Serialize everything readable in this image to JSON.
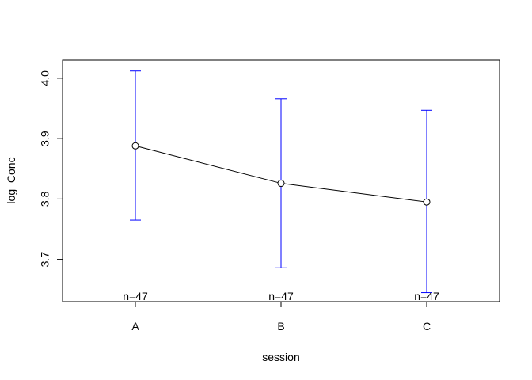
{
  "chart_data": {
    "type": "line",
    "title": "",
    "xlabel": "session",
    "ylabel": "log_Conc",
    "categories": [
      "A",
      "B",
      "C"
    ],
    "series": [
      {
        "values": [
          3.888,
          3.826,
          3.795
        ],
        "lower": [
          3.765,
          3.686,
          3.645
        ],
        "upper": [
          4.012,
          3.966,
          3.947
        ],
        "n_labels": [
          "n=47",
          "n=47",
          "n=47"
        ]
      }
    ],
    "yticks": [
      3.7,
      3.8,
      3.9,
      4.0
    ],
    "ytick_labels": [
      "3.7",
      "3.8",
      "3.9",
      "4.0"
    ],
    "ylim": [
      3.63,
      4.03
    ],
    "xlim": [
      0.5,
      3.5
    ],
    "grid": false,
    "colors": {
      "line": "#000000",
      "errorbar": "#0000ff",
      "point_fill": "#ffffff"
    }
  }
}
